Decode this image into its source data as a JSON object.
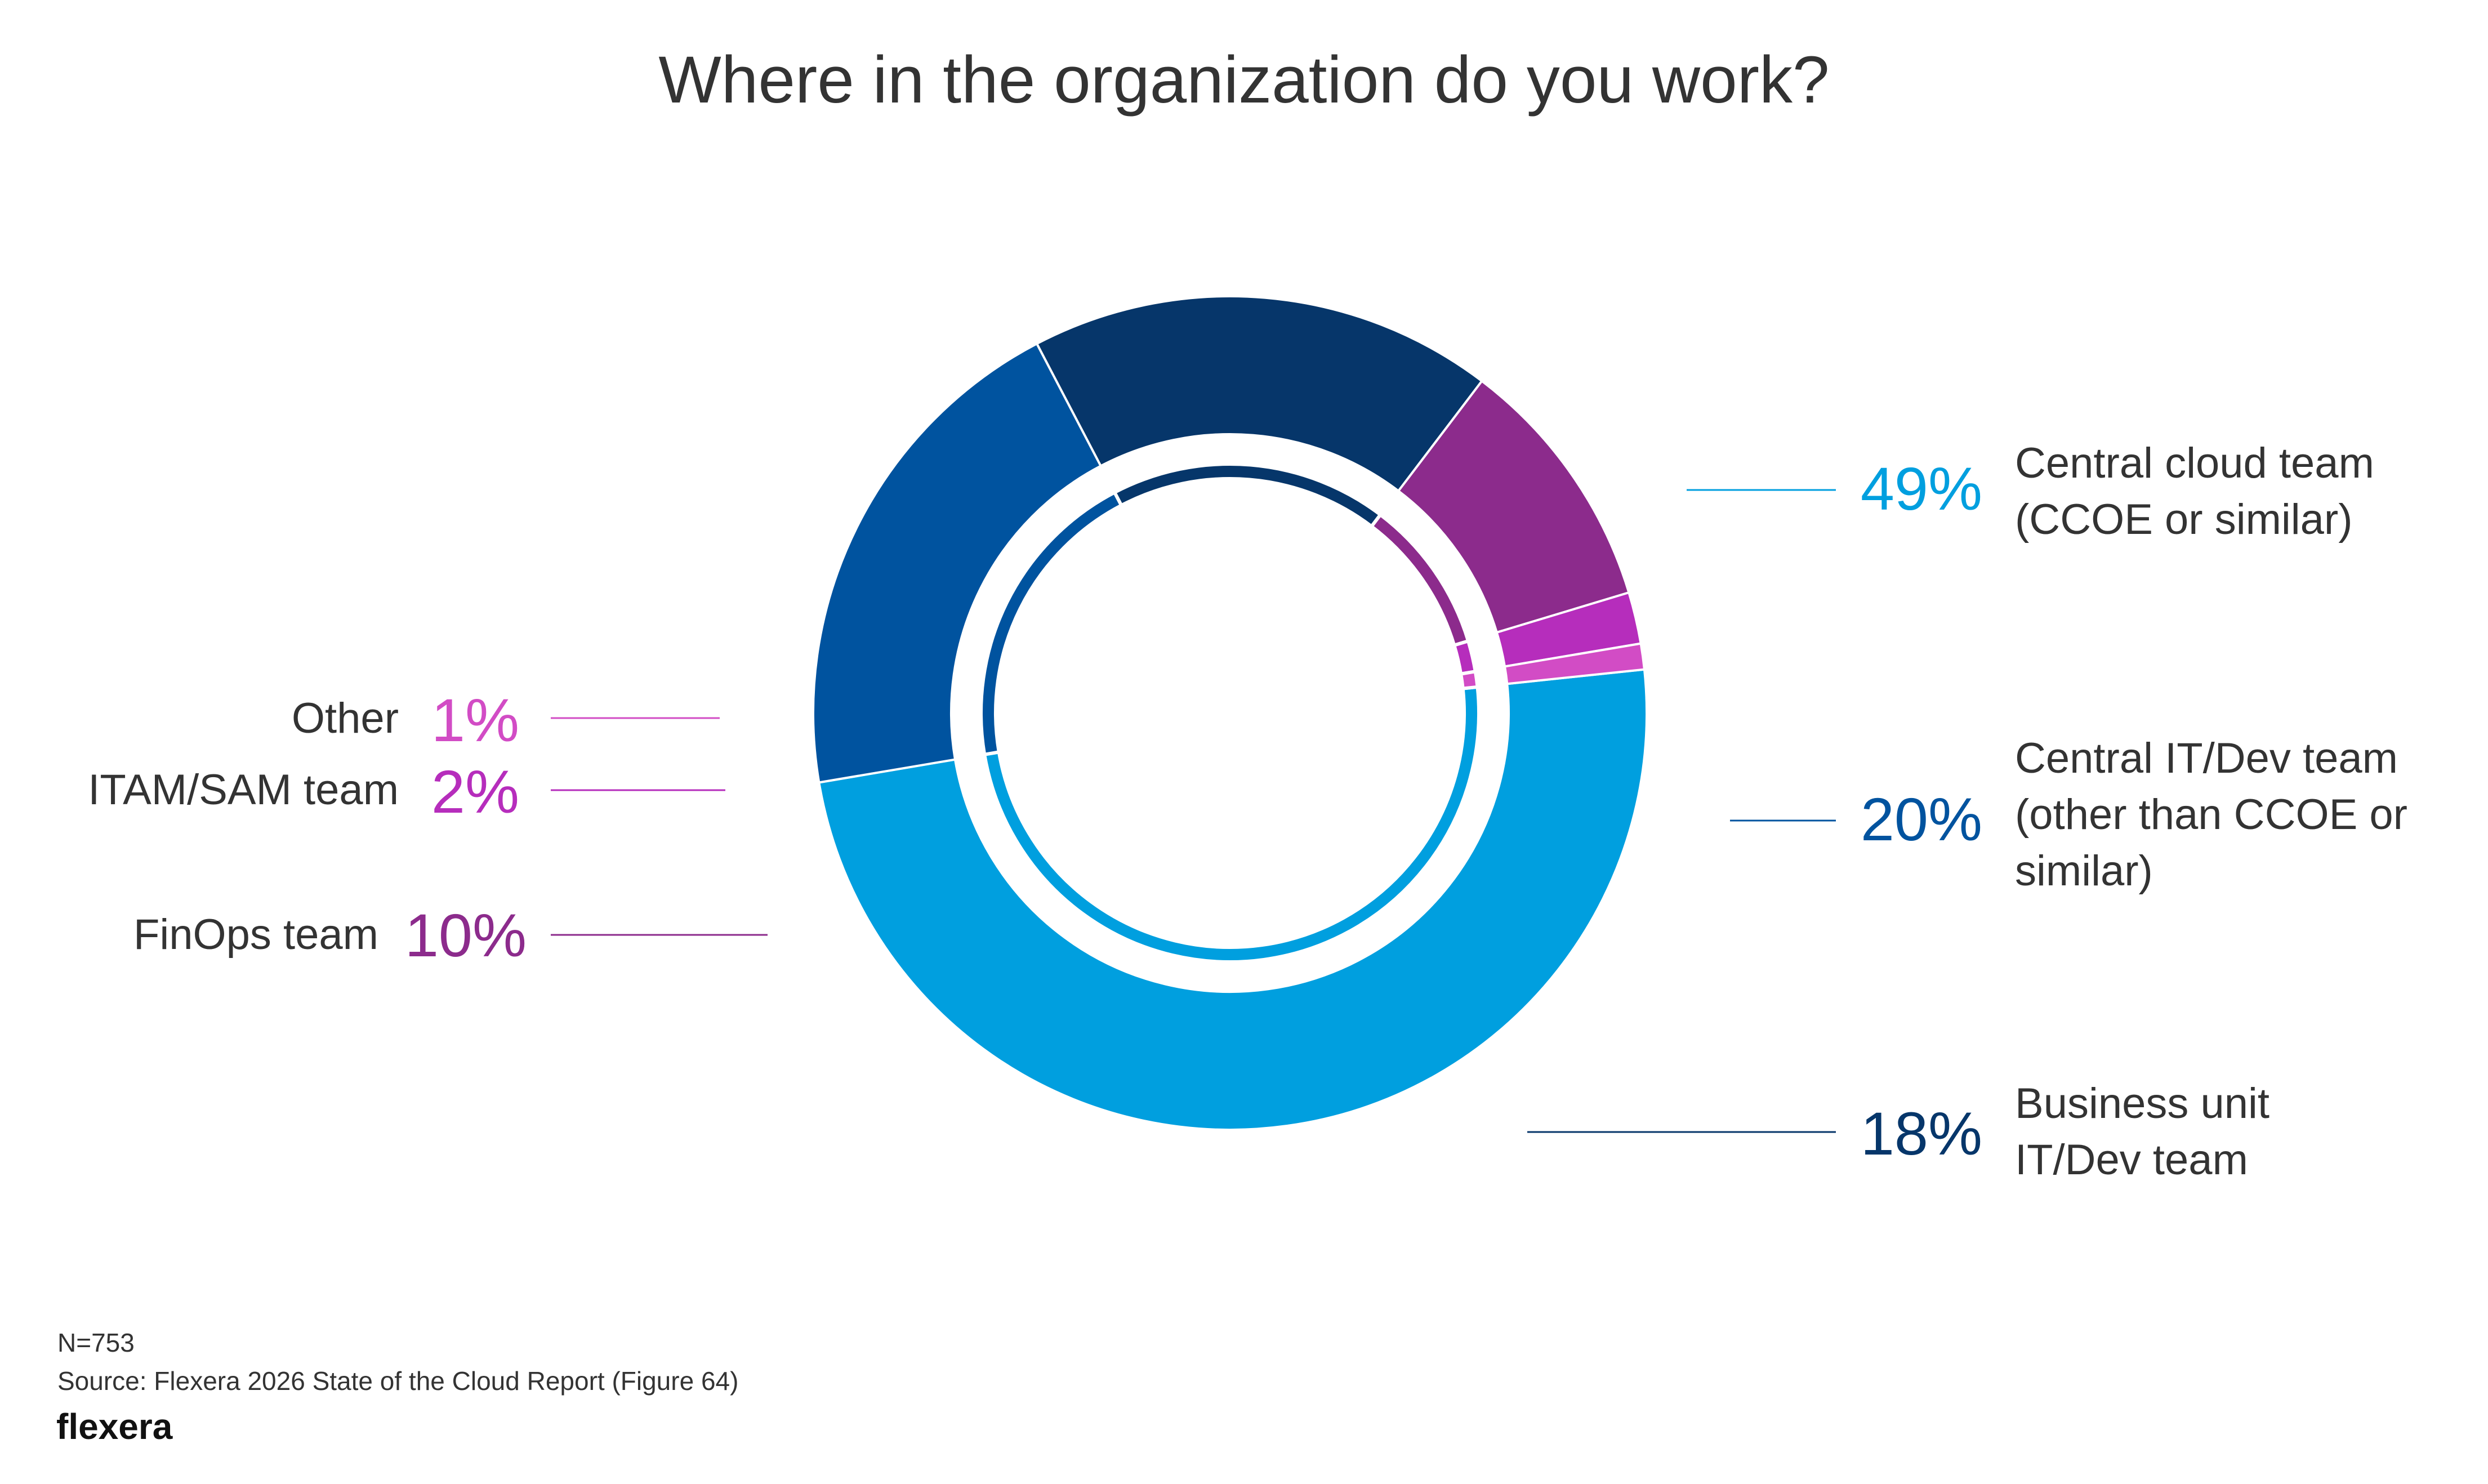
{
  "chart_data": {
    "type": "pie",
    "title": "Where in the organization do you work?",
    "slices": [
      {
        "label": [
          "Central cloud team",
          "(CCOE or similar)"
        ],
        "value": 49,
        "display": "49%",
        "color": "#009FDF"
      },
      {
        "label": [
          "Central IT/Dev team",
          "(other than CCOE or",
          "similar)"
        ],
        "value": 20,
        "display": "20%",
        "color": "#00539F"
      },
      {
        "label": [
          "Business unit",
          "IT/Dev team"
        ],
        "value": 18,
        "display": "18%",
        "color": "#06366A"
      },
      {
        "label": [
          "FinOps team"
        ],
        "value": 10,
        "display": "10%",
        "color": "#8C2B8C"
      },
      {
        "label": [
          "ITAM/SAM team"
        ],
        "value": 2,
        "display": "2%",
        "color": "#B62DBC"
      },
      {
        "label": [
          "Other"
        ],
        "value": 1,
        "display": "1%",
        "color": "#D24CC5"
      }
    ]
  },
  "footer": {
    "n": "N=753",
    "source": "Source: Flexera 2026 State of the Cloud Report (Figure 64)",
    "logo": "flexera"
  },
  "colors": {
    "text": "#333333",
    "background": "#ffffff"
  }
}
